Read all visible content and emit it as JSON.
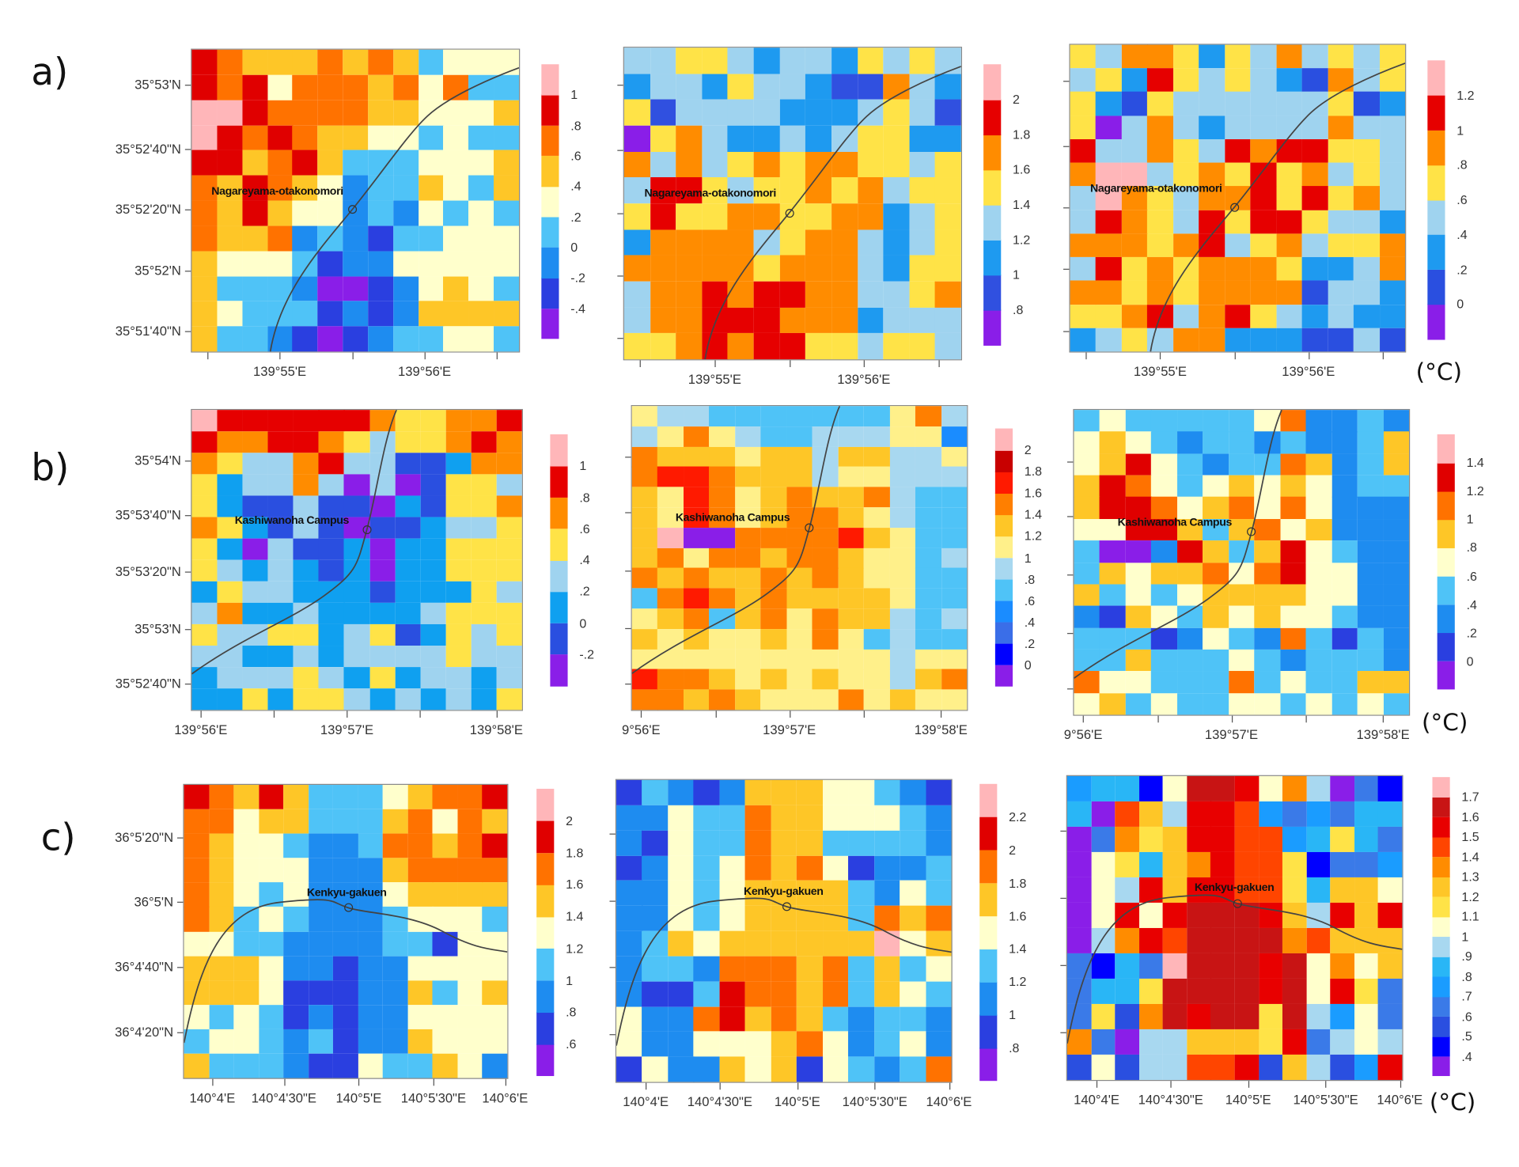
{
  "row_labels": [
    "a)",
    "b)",
    "c)"
  ],
  "unit_labels": [
    "(°C)",
    "(°C)",
    "(°C)"
  ],
  "chart_data": [
    {
      "type": "heatmap",
      "row": "a",
      "station": "Nagareyama-otakonomori",
      "yticks": [
        "35°53'N",
        "35°52'40\"N",
        "35°52'20\"N",
        "35°52'N",
        "35°51'40\"N"
      ],
      "xticks": [
        "139°55'E",
        "139°56'E"
      ],
      "colorbar": {
        "ticks": [
          "-.4",
          "-.2",
          "0",
          ".2",
          ".4",
          ".6",
          ".8",
          "1"
        ],
        "colors": [
          "#8a1ee8",
          "#2a3fe0",
          "#1e8cf0",
          "#4fc3f7",
          "#ffffcc",
          "#fec627",
          "#ff7200",
          "#e00000",
          "#ffb6b9"
        ]
      },
      "grid": [
        "7655565653444",
        "7674666564633",
        "8876666554445",
        "8767655443433",
        "7756753334445",
        "6576542335435",
        "6575442324343",
        "6556232133444",
        "5444312244444",
        "5333200124543",
        "5433312125555",
        "5332101233443"
      ]
    },
    {
      "type": "heatmap",
      "row": "a",
      "station": "Nagareyama-otakonomori",
      "yticks": [],
      "xticks": [
        "139°55'E",
        "139°56'E"
      ],
      "colorbar": {
        "ticks": [
          ".8",
          "1",
          "1.2",
          "1.4",
          "1.6",
          "1.8",
          "2"
        ],
        "colors": [
          "#8a1ee8",
          "#3050e0",
          "#1e9af0",
          "#9fd3ef",
          "#ffe347",
          "#ff8c00",
          "#e60000",
          "#ffb6b9"
        ]
      },
      "grid": [
        "3344323324343",
        "2332433211532",
        "4133332223431",
        "0453223234422",
        "5353454554434",
        "3664344545344",
        "4644554455234",
        "2555534553234",
        "5555545553244",
        "3556566553345",
        "3556665552333",
        "4456566443443"
      ]
    },
    {
      "type": "heatmap",
      "row": "a",
      "station": "Nagareyama-otakonomori",
      "yticks": [],
      "xticks": [
        "139°55'E",
        "139°56'E"
      ],
      "colorbar": {
        "ticks": [
          "0",
          ".2",
          ".4",
          ".6",
          ".8",
          "1",
          "1.2"
        ],
        "colors": [
          "#8a1ee8",
          "#2a4fe0",
          "#1e9af0",
          "#9fd3ef",
          "#ffe347",
          "#ff8c00",
          "#e60000",
          "#ffb6b9"
        ]
      },
      "grid": [
        "4355424353434",
        "3426434321534",
        "4214333333412",
        "4035323333533",
        "6335436566443",
        "5773454645343",
        "3754355646453",
        "3654364664332",
        "5554563453445",
        "3645455542235",
        "5545455551332",
        "4456356432322",
        "2343552221131"
      ]
    },
    {
      "type": "heatmap",
      "row": "b",
      "station": "Kashiwanoha Campus",
      "yticks": [
        "35°54'N",
        "35°53'40\"N",
        "35°53'20\"N",
        "35°53'N",
        "35°52'40\"N"
      ],
      "xticks": [
        "139°56'E",
        "139°57'E",
        "139°58'E"
      ],
      "colorbar": {
        "ticks": [
          "-.2",
          "0",
          ".2",
          ".4",
          ".6",
          ".8",
          "1"
        ],
        "colors": [
          "#8a1ee8",
          "#2a4fe0",
          "#0fa0f0",
          "#9fd3ef",
          "#ffe347",
          "#ff8c00",
          "#e60000",
          "#ffb6b9"
        ]
      },
      "grid": [
        "7666666544556",
        "6556654344565",
        "5433563311255",
        "4233530301443",
        "4211311021445",
        "5421310112334",
        "4203112022444",
        "4323212022444",
        "2433222122243",
        "3522322223444",
        "4334423412434",
        "3322323333433",
        "2333432423323",
        "2242443232324"
      ]
    },
    {
      "type": "heatmap",
      "row": "b",
      "station": "Kashiwanoha Campus",
      "yticks": [],
      "xticks": [
        "9°56'E",
        "139°57'E",
        "139°58'E"
      ],
      "colorbar": {
        "ticks": [
          "0",
          ".2",
          ".4",
          ".6",
          ".8",
          "1",
          "1.2",
          "1.4",
          "1.6",
          "1.8",
          "2"
        ],
        "colors": [
          "#8a1ee8",
          "#0000ff",
          "#3a6ee8",
          "#1a8cff",
          "#4fc3f7",
          "#a8d8f0",
          "#fff08a",
          "#fec627",
          "#ff7f00",
          "#ff1a00",
          "#c80000",
          "#ffb6b9"
        ]
      },
      "grid": [
        "6554444444685",
        "5686544555663",
        "8777677577556",
        "8998777566555",
        "7698678778544",
        "7698678876544",
        "7b00888897644",
        "7868878876645",
        "8787787876644",
        "4898787777644",
        "6784786877545",
        "7676676864544",
        "6666666666566",
        "9887676766578",
        "8878766686766"
      ]
    },
    {
      "type": "heatmap",
      "row": "b",
      "station": "Kashiwanoha Campus",
      "yticks": [],
      "xticks": [
        "9°56'E",
        "139°57'E",
        "139°58'E"
      ],
      "colorbar": {
        "ticks": [
          "0",
          ".2",
          ".4",
          ".6",
          ".8",
          "1",
          "1.2",
          "1.4"
        ],
        "colors": [
          "#8a1ee8",
          "#2a3fe0",
          "#1e8cf0",
          "#4fc3f7",
          "#ffffcc",
          "#fec627",
          "#ff7200",
          "#e00000",
          "#ffb6b9"
        ]
      },
      "grid": [
        "3433333462232",
        "4543233232235",
        "4574323365235",
        "5764345454233",
        "5776456464222",
        "4477535645222",
        "3002753574322",
        "3545564674422",
        "5343455554422",
        "2154354544322",
        "3331243263132",
        "3353334323332",
        "6443336343355",
        "4534334434343"
      ]
    },
    {
      "type": "heatmap",
      "row": "c",
      "station": "Kenkyu-gakuen",
      "yticks": [
        "36°5'20\"N",
        "36°5'N",
        "36°4'40\"N",
        "36°4'20\"N"
      ],
      "xticks": [
        "140°4'E",
        "140°4'30\"E",
        "140°5'E",
        "140°5'30\"E",
        "140°6'E"
      ],
      "colorbar": {
        "ticks": [
          ".6",
          ".8",
          "1",
          "1.2",
          "1.4",
          "1.6",
          "1.8",
          "2"
        ],
        "colors": [
          "#8a1ee8",
          "#2a3fe0",
          "#1e8cf0",
          "#4fc3f7",
          "#ffffcc",
          "#fec627",
          "#ff7200",
          "#e00000",
          "#ffb6b9"
        ]
      },
      "grid": [
        "7657533345667",
        "6645533356465",
        "6544322366567",
        "6544422256666",
        "6543422245555",
        "6534322234443",
        "4433222233144",
        "5554221224444",
        "5554111225345",
        "4343121224444",
        "3443231225444",
        "5333211433542"
      ]
    },
    {
      "type": "heatmap",
      "row": "c",
      "station": "Kenkyu-gakuen",
      "yticks": [],
      "xticks": [
        "140°4'E",
        "140°4'30\"E",
        "140°5'E",
        "140°5'30\"E",
        "140°6'E"
      ],
      "colorbar": {
        "ticks": [
          ".8",
          "1",
          "1.2",
          "1.4",
          "1.6",
          "1.8",
          "2",
          "2.2"
        ],
        "colors": [
          "#8a1ee8",
          "#2a3fe0",
          "#1e8cf0",
          "#4fc3f7",
          "#ffffcc",
          "#fec627",
          "#ff7200",
          "#e00000",
          "#ffb6b9"
        ]
      },
      "grid": [
        "1321255544321",
        "2243365544432",
        "2143365533332",
        "1243465641223",
        "2243455553243",
        "2243455553656",
        "2354555555845",
        "2332666563534",
        "2113766563543",
        "4226756532332",
        "4224445642342",
        "1422545143236"
      ]
    },
    {
      "type": "heatmap",
      "row": "c",
      "station": "Kenkyu-gakuen",
      "yticks": [],
      "xticks": [
        "140°4'E",
        "140°4'30\"E",
        "140°5'E",
        "140°5'30\"E",
        "140°6'E"
      ],
      "colorbar": {
        "ticks": [
          ".4",
          ".5",
          ".6",
          ".7",
          ".8",
          ".9",
          "1",
          "1.1",
          "1.2",
          "1.3",
          "1.4",
          "1.5",
          "1.6",
          "1.7"
        ],
        "colors": [
          "#8a1ee8",
          "#0000ff",
          "#2a4fe0",
          "#3a7ae8",
          "#1a9cff",
          "#29b6f6",
          "#a8d8f0",
          "#ffffcc",
          "#ffe347",
          "#fec627",
          "#ff8c00",
          "#ff4500",
          "#e80000",
          "#c81414",
          "#ffb6b9"
        ]
      },
      "grid": [
        "45517ddc7a6031",
        "50b96ccb434355",
        "03a89ccbb45853",
        "07859acbb81334",
        "076c9ccbb85997",
        "07c7cdddc96c9c",
        "06acbddddab999",
        "3153edddcd7a79",
        "3558ddddcd7c83",
        "382adcdd8d6473",
        "a30669998c3676",
        "27266bbc29624c"
      ]
    }
  ]
}
